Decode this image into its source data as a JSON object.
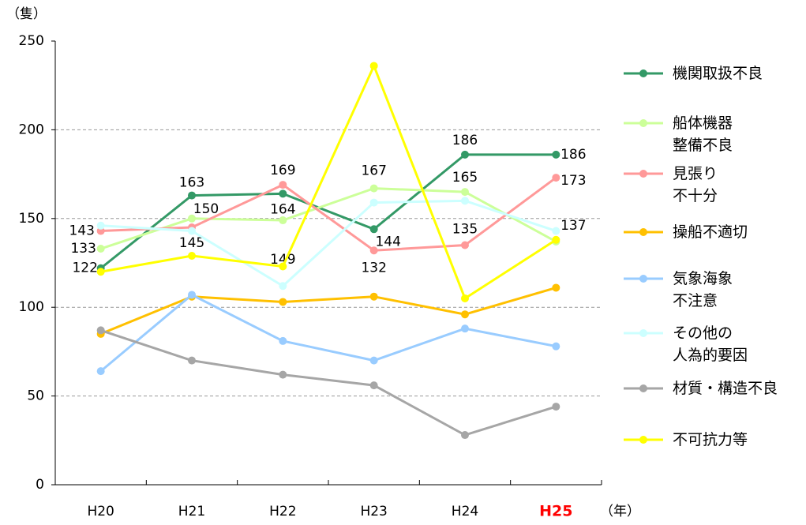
{
  "chart_data": {
    "type": "line",
    "y_unit": "（隻）",
    "x_unit": "（年）",
    "categories": [
      "H20",
      "H21",
      "H22",
      "H23",
      "H24",
      "H25"
    ],
    "highlight_category": 5,
    "highlight_color": "#ff0000",
    "ylim": [
      0,
      250
    ],
    "yticks": [
      0,
      50,
      100,
      150,
      200,
      250
    ],
    "grid": true,
    "series": [
      {
        "name": "機関取扱不良",
        "color": "#339966",
        "show_labels": true,
        "values": [
          122,
          163,
          164,
          144,
          186,
          186
        ]
      },
      {
        "name": "船体機器\n整備不良",
        "color": "#ccff99",
        "show_labels": true,
        "values": [
          133,
          150,
          149,
          167,
          165,
          137
        ]
      },
      {
        "name": "見張り\n不十分",
        "color": "#ff9999",
        "show_labels": true,
        "values": [
          143,
          145,
          169,
          132,
          135,
          173
        ]
      },
      {
        "name": "操船不適切",
        "color": "#ffc000",
        "show_labels": false,
        "values": [
          85,
          106,
          103,
          106,
          96,
          111
        ]
      },
      {
        "name": "気象海象\n不注意",
        "color": "#99ccff",
        "show_labels": false,
        "values": [
          64,
          107,
          81,
          70,
          88,
          78
        ]
      },
      {
        "name": "その他の\n人為的要因",
        "color": "#ccffff",
        "show_labels": false,
        "values": [
          146,
          143,
          112,
          159,
          160,
          143
        ]
      },
      {
        "name": "材質・構造不良",
        "color": "#a6a6a6",
        "show_labels": false,
        "values": [
          87,
          70,
          62,
          56,
          28,
          44
        ]
      },
      {
        "name": "不可抗力等",
        "color": "#ffff00",
        "show_labels": false,
        "values": [
          120,
          129,
          123,
          236,
          105,
          138
        ]
      }
    ]
  }
}
